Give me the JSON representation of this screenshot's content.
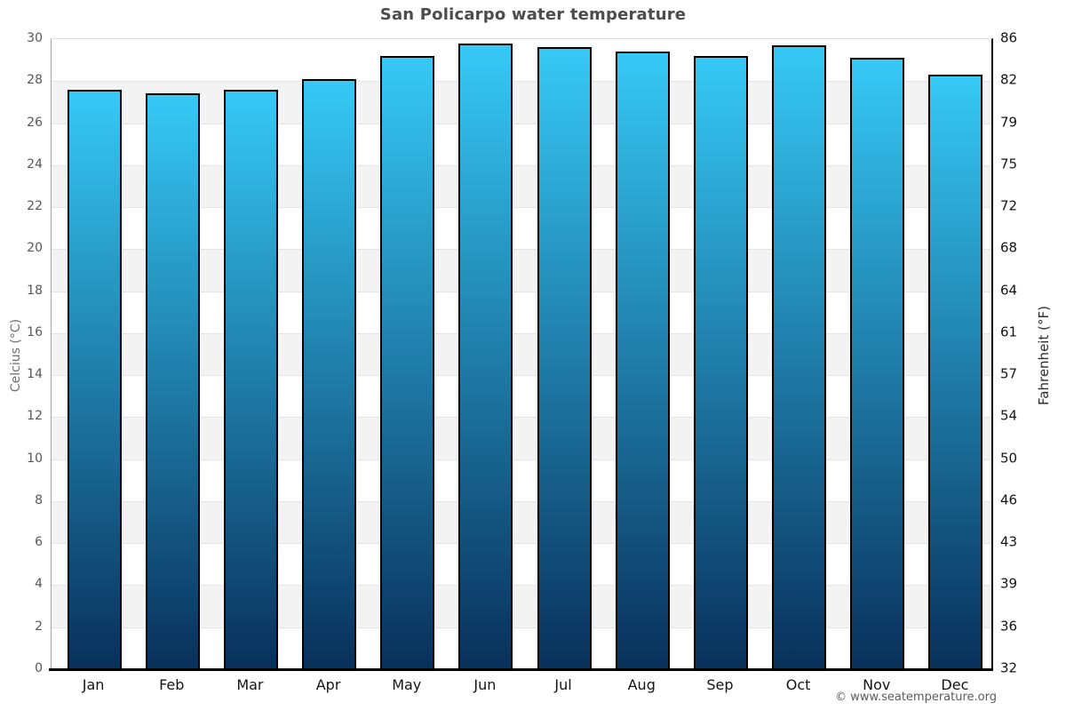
{
  "page": {
    "attribution": "© www.seatemperature.org"
  },
  "chart_data": {
    "type": "bar",
    "title": "San Policarpo water temperature",
    "categories": [
      "Jan",
      "Feb",
      "Mar",
      "Apr",
      "May",
      "Jun",
      "Jul",
      "Aug",
      "Sep",
      "Oct",
      "Nov",
      "Dec"
    ],
    "values": [
      27.6,
      27.4,
      27.6,
      28.1,
      29.2,
      29.8,
      29.6,
      29.4,
      29.2,
      29.7,
      29.1,
      28.3
    ],
    "units": "°C",
    "xlabel": "",
    "ylabel_left": "Celcius (°C)",
    "ylabel_right": "Fahrenheit (°F)",
    "ylim": [
      0,
      30
    ],
    "yticks_celsius": [
      30,
      28,
      26,
      24,
      22,
      20,
      18,
      16,
      14,
      12,
      10,
      8,
      6,
      4,
      2,
      0
    ],
    "yticks_fahrenheit": [
      86,
      82,
      79,
      75,
      72,
      68,
      64,
      61,
      57,
      54,
      50,
      46,
      43,
      39,
      36,
      32
    ],
    "grid": "horizontal-bands-every-2C",
    "legend": "none",
    "colors": {
      "bar_gradient_top": "#36c9f6",
      "bar_gradient_bottom": "#08305a",
      "bar_border": "#000000",
      "band_alt": "#f3f3f3",
      "gridline": "#e4e4e4",
      "axis_bottom_right": "#000000",
      "axis_left": "#a6a6a6",
      "title": "#4c4c4c"
    }
  }
}
